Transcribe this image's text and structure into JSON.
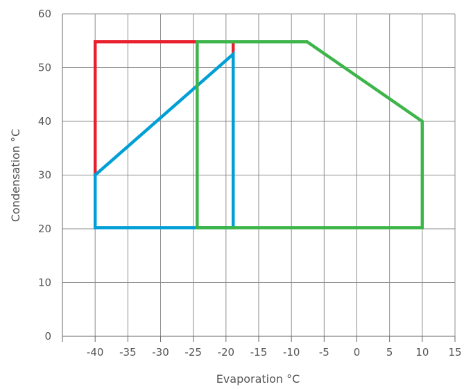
{
  "chart_data": {
    "type": "line",
    "title": "",
    "xlabel": "Evaporation °C",
    "ylabel": "Condensation °C",
    "xlim": [
      -45,
      15
    ],
    "ylim": [
      0,
      60
    ],
    "x_ticks": [
      -40,
      -35,
      -30,
      -25,
      -20,
      -15,
      -10,
      -5,
      0,
      5,
      10,
      15
    ],
    "x_tick_labels": [
      "-40",
      "-35",
      "-30",
      "-25",
      "-20",
      "-15",
      "-10",
      "-5",
      "0",
      "5",
      "10",
      "15"
    ],
    "y_ticks": [
      0,
      10,
      20,
      30,
      40,
      50,
      60
    ],
    "y_tick_labels": [
      "0",
      "10",
      "20",
      "30",
      "40",
      "50",
      "60"
    ],
    "grid": true,
    "legend": "none",
    "series": [
      {
        "color": "#e8202e",
        "x": [
          -40,
          -40,
          -18.9,
          -18.9
        ],
        "y": [
          30,
          54.8,
          54.8,
          52.5
        ]
      },
      {
        "color": "#00a0d6",
        "x": [
          -40,
          -18.9,
          -18.9,
          -40,
          -40
        ],
        "y": [
          30,
          52.5,
          20.2,
          20.2,
          30
        ]
      },
      {
        "color": "#3db54a",
        "x": [
          -24.4,
          -7.6,
          10,
          10,
          -24.4,
          -24.4
        ],
        "y": [
          54.8,
          54.8,
          40,
          20.2,
          20.2,
          54.8
        ]
      }
    ]
  }
}
